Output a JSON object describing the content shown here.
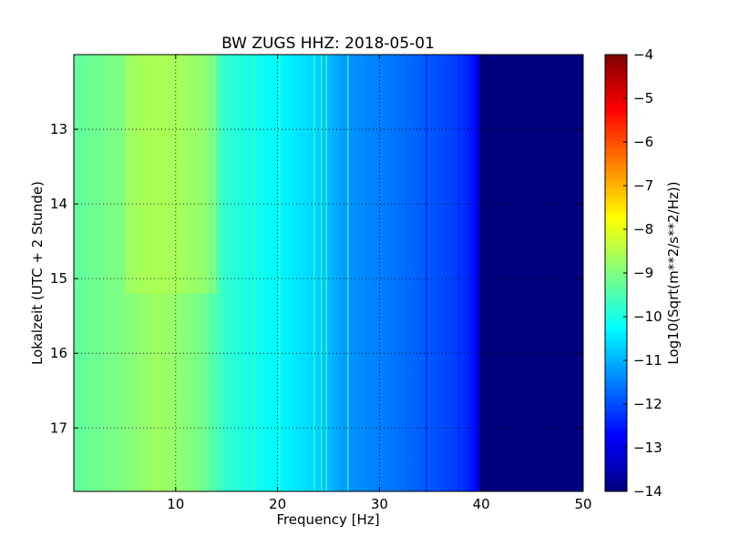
{
  "chart_data": {
    "type": "heatmap",
    "title": "BW ZUGS HHZ: 2018-05-01",
    "xlabel": "Frequency [Hz]",
    "ylabel": "Lokalzeit (UTC + 2 Stunde)",
    "xlim": [
      0,
      50
    ],
    "ylim": [
      12.0,
      17.85
    ],
    "y_inverted": true,
    "x_ticks": [
      10,
      20,
      30,
      40,
      50
    ],
    "y_ticks": [
      13,
      14,
      15,
      16,
      17
    ],
    "grid": true,
    "colormap": "jet",
    "colorbar": {
      "label": "Log10(Sqrt(m**2/s**2/Hz))",
      "range": [
        -14,
        -4
      ],
      "ticks": [
        -4,
        -5,
        -6,
        -7,
        -8,
        -9,
        -10,
        -11,
        -12,
        -13,
        -14
      ]
    },
    "frequency_profile_log10": {
      "frequency_hz": [
        0,
        5,
        8,
        10,
        13,
        15,
        20,
        24,
        27,
        30,
        35,
        38,
        39.5,
        40,
        50
      ],
      "value": [
        -9.3,
        -9.0,
        -8.7,
        -8.8,
        -9.2,
        -9.8,
        -10.3,
        -10.7,
        -11.3,
        -11.5,
        -11.9,
        -12.2,
        -12.7,
        -14.0,
        -14.0
      ]
    },
    "spectral_lines_hz": [
      13.5,
      17.7,
      20.2,
      23.6,
      24.3,
      24.8,
      26.9,
      34.6,
      37.8,
      39.0
    ],
    "active_time_band_hours": [
      12.0,
      15.2
    ]
  }
}
